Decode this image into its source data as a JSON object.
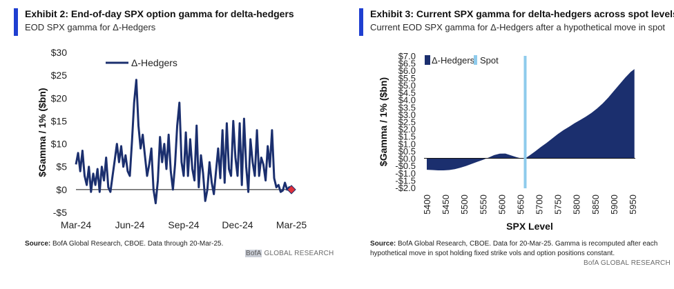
{
  "left": {
    "title": "Exhibit 2: End-of-day SPX option gamma for delta-hedgers",
    "subtitle": "EOD SPX gamma for Δ-Hedgers",
    "source_label": "Source:",
    "source_text": "BofA Global Research, CBOE. Data through 20-Mar-25.",
    "brand_left": "BofA",
    "brand_right": "GLOBAL RESEARCH"
  },
  "right": {
    "title": "Exhibit 3: Current SPX gamma for delta-hedgers across spot levels",
    "subtitle": "Current EOD SPX gamma for Δ-Hedgers after a hypothetical move in spot",
    "source_label": "Source:",
    "source_text": "BofA Global Research, CBOE. Data for 20-Mar-25. Gamma is recomputed after each hypothetical move in spot holding fixed strike vols and option positions constant.",
    "brand": "BofA GLOBAL RESEARCH"
  },
  "colors": {
    "navy": "#1b2f6e",
    "accent": "#1f3fd1",
    "spot": "#8ecbec",
    "marker": "#e0303a"
  },
  "chart_data": [
    {
      "type": "line",
      "ylabel": "$Gamma / 1% ($bn)",
      "xlabel": "",
      "ylim": [
        -5,
        30
      ],
      "yticks": [
        -5,
        0,
        5,
        10,
        15,
        20,
        25,
        30
      ],
      "ytick_labels": [
        "-$5",
        "$0",
        "$5",
        "$10",
        "$15",
        "$20",
        "$25",
        "$30"
      ],
      "xticks": [
        {
          "label": "Mar-24",
          "t": 0.0
        },
        {
          "label": "Jun-24",
          "t": 0.25
        },
        {
          "label": "Sep-24",
          "t": 0.5
        },
        {
          "label": "Dec-24",
          "t": 0.75
        },
        {
          "label": "Mar-25",
          "t": 1.0
        }
      ],
      "legend": "top-left",
      "series": [
        {
          "name": "Δ-Hedgers",
          "color": "#1b2f6e",
          "t": [
            0.0,
            0.01,
            0.02,
            0.03,
            0.04,
            0.05,
            0.06,
            0.07,
            0.08,
            0.09,
            0.1,
            0.11,
            0.12,
            0.13,
            0.14,
            0.15,
            0.16,
            0.17,
            0.18,
            0.19,
            0.2,
            0.21,
            0.22,
            0.23,
            0.24,
            0.25,
            0.26,
            0.27,
            0.28,
            0.29,
            0.3,
            0.31,
            0.32,
            0.33,
            0.34,
            0.35,
            0.36,
            0.37,
            0.38,
            0.39,
            0.4,
            0.41,
            0.42,
            0.43,
            0.44,
            0.45,
            0.46,
            0.47,
            0.48,
            0.49,
            0.5,
            0.51,
            0.52,
            0.53,
            0.54,
            0.55,
            0.56,
            0.57,
            0.58,
            0.59,
            0.6,
            0.61,
            0.62,
            0.63,
            0.64,
            0.65,
            0.66,
            0.67,
            0.68,
            0.69,
            0.7,
            0.71,
            0.72,
            0.73,
            0.74,
            0.75,
            0.76,
            0.77,
            0.78,
            0.79,
            0.8,
            0.81,
            0.82,
            0.83,
            0.84,
            0.85,
            0.86,
            0.87,
            0.88,
            0.89,
            0.9,
            0.91,
            0.92,
            0.93,
            0.94,
            0.95,
            0.96,
            0.97,
            0.98,
            0.99,
            1.0
          ],
          "values": [
            5.5,
            8.0,
            4.0,
            8.5,
            3.0,
            1.0,
            5.0,
            -0.5,
            3.5,
            1.0,
            4.5,
            -0.5,
            5.0,
            2.0,
            7.0,
            0.5,
            -0.5,
            3.0,
            6.5,
            10.0,
            6.0,
            9.5,
            5.0,
            7.5,
            4.0,
            3.0,
            10.5,
            19.0,
            24.0,
            14.0,
            9.0,
            12.0,
            7.5,
            3.0,
            5.5,
            9.0,
            0.0,
            -3.0,
            2.0,
            11.5,
            6.0,
            10.0,
            4.5,
            12.0,
            4.0,
            0.0,
            5.5,
            14.0,
            19.0,
            6.0,
            3.0,
            12.5,
            3.0,
            11.0,
            4.5,
            2.0,
            14.0,
            0.5,
            7.5,
            3.5,
            -2.5,
            0.0,
            6.0,
            1.5,
            -1.0,
            4.0,
            9.0,
            2.5,
            13.0,
            1.5,
            14.5,
            4.5,
            3.0,
            15.0,
            7.0,
            3.0,
            14.5,
            1.0,
            15.5,
            5.0,
            -0.5,
            11.0,
            6.0,
            3.0,
            13.0,
            3.0,
            7.0,
            5.5,
            2.0,
            9.5,
            5.0,
            13.0,
            2.5,
            0.5,
            1.0,
            -0.5,
            -0.2,
            1.5,
            0.0,
            0.5,
            0.0
          ]
        }
      ],
      "marker": {
        "t": 1.0,
        "value": 0.0
      }
    },
    {
      "type": "area",
      "ylabel": "$Gamma / 1% ($bn)",
      "xlabel": "SPX Level",
      "xlim": [
        5400,
        5950
      ],
      "ylim": [
        -2.0,
        7.0
      ],
      "yticks": [
        -2.0,
        -1.5,
        -1.0,
        -0.5,
        0.0,
        0.5,
        1.0,
        1.5,
        2.0,
        2.5,
        3.0,
        3.5,
        4.0,
        4.5,
        5.0,
        5.5,
        6.0,
        6.5,
        7.0
      ],
      "ytick_labels": [
        "-$2.0",
        "-$1.5",
        "-$1.0",
        "-$0.5",
        "$0.0",
        "$0.5",
        "$1.0",
        "$1.5",
        "$2.0",
        "$2.5",
        "$3.0",
        "$3.5",
        "$4.0",
        "$4.5",
        "$5.0",
        "$5.5",
        "$6.0",
        "$6.5",
        "$7.0"
      ],
      "xticks": [
        5400,
        5450,
        5500,
        5550,
        5600,
        5650,
        5700,
        5750,
        5800,
        5850,
        5900,
        5950
      ],
      "legend": "top-left",
      "spot": 5663,
      "series": [
        {
          "name": "Δ-Hedgers",
          "color": "#1b2f6e",
          "x": [
            5400,
            5415,
            5430,
            5445,
            5460,
            5475,
            5490,
            5505,
            5520,
            5535,
            5550,
            5565,
            5580,
            5595,
            5610,
            5625,
            5640,
            5655,
            5663,
            5675,
            5690,
            5705,
            5720,
            5735,
            5750,
            5765,
            5780,
            5795,
            5810,
            5825,
            5840,
            5855,
            5870,
            5885,
            5900,
            5915,
            5930,
            5945,
            5955
          ],
          "values": [
            -0.78,
            -0.8,
            -0.82,
            -0.82,
            -0.8,
            -0.74,
            -0.64,
            -0.52,
            -0.38,
            -0.24,
            -0.1,
            0.05,
            0.22,
            0.32,
            0.33,
            0.2,
            0.08,
            -0.02,
            0.0,
            0.2,
            0.48,
            0.78,
            1.05,
            1.35,
            1.65,
            1.92,
            2.15,
            2.4,
            2.62,
            2.85,
            3.1,
            3.4,
            3.75,
            4.15,
            4.6,
            5.05,
            5.5,
            5.9,
            6.1
          ]
        },
        {
          "name": "Spot",
          "color": "#8ecbec"
        }
      ]
    }
  ]
}
